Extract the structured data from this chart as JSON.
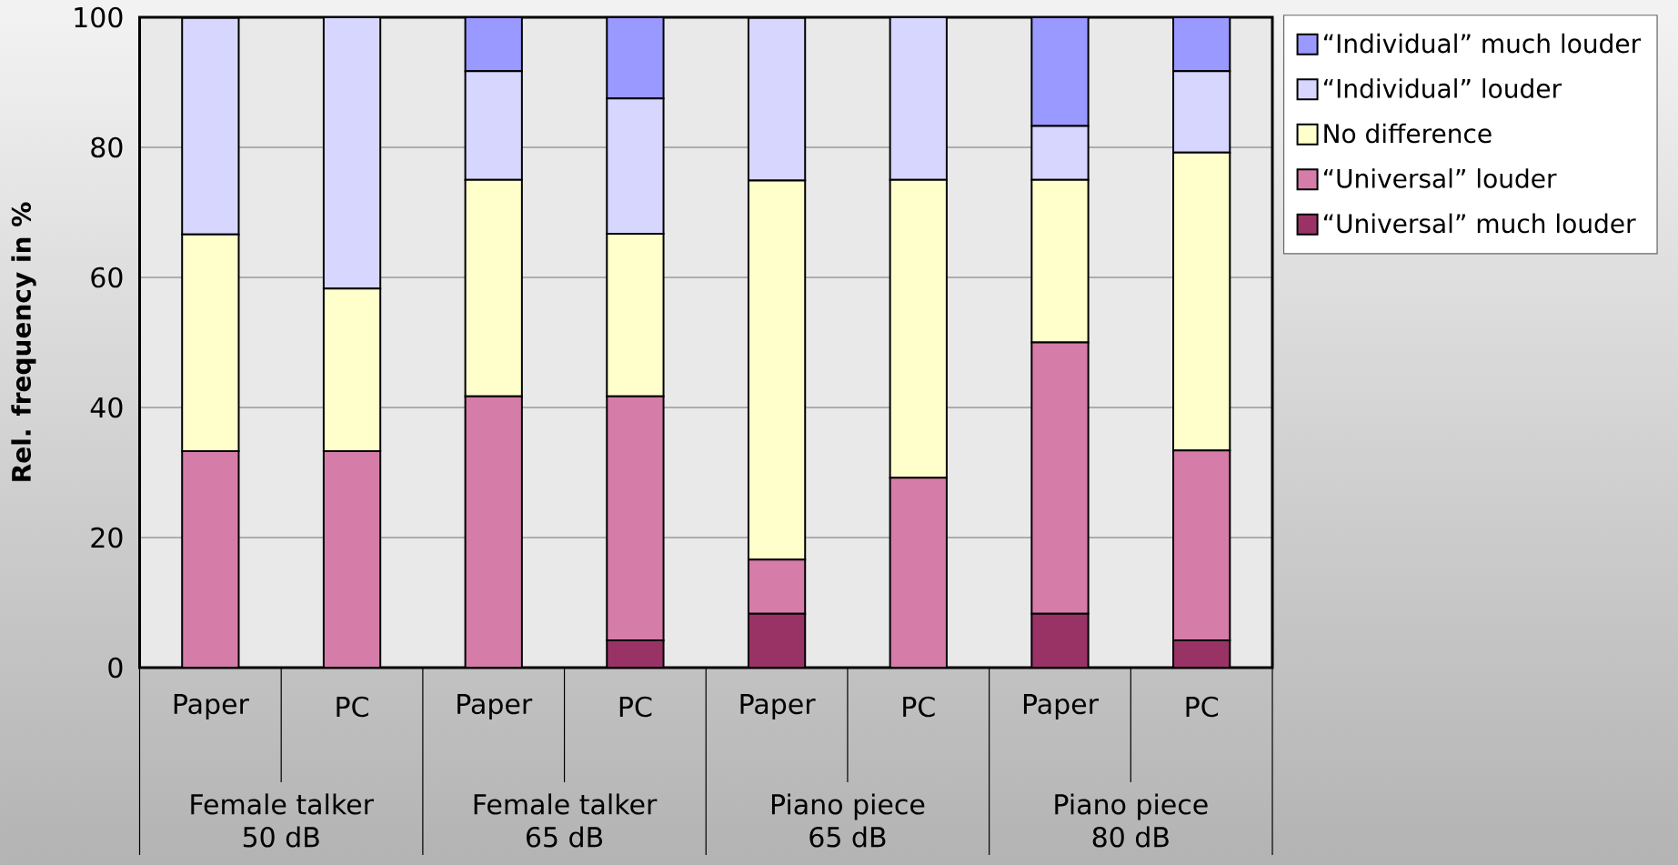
{
  "chart_data": {
    "type": "bar",
    "stacked": true,
    "ylabel": "Rel. frequency in %",
    "categories": [
      "Paper",
      "PC",
      "Paper",
      "PC",
      "Paper",
      "PC",
      "Paper",
      "PC"
    ],
    "annotations": [
      "Female talker 50 dB",
      "Female talker 65 dB",
      "Piano piece 65 dB",
      "Piano piece 80 dB"
    ],
    "series": [
      {
        "name": "“Universal” much louder",
        "color": "#993366",
        "values": [
          0,
          0,
          0,
          4.2,
          8.3,
          0,
          8.3,
          4.2
        ]
      },
      {
        "name": "“Universal” louder",
        "color": "#d67ca8",
        "values": [
          33.3,
          33.3,
          41.7,
          37.5,
          8.3,
          29.2,
          41.7,
          29.2
        ]
      },
      {
        "name": "No difference",
        "color": "#ffffcc",
        "values": [
          33.3,
          25,
          33.3,
          25,
          58.3,
          45.8,
          25,
          45.8
        ]
      },
      {
        "name": "“Individual” louder",
        "color": "#d6d6ff",
        "values": [
          33.3,
          41.7,
          16.7,
          20.8,
          25,
          25,
          8.3,
          12.5
        ]
      },
      {
        "name": "“Individual” much louder",
        "color": "#9999ff",
        "values": [
          0,
          0,
          8.3,
          12.5,
          0,
          0,
          16.7,
          8.3
        ]
      }
    ],
    "ylim": [
      0,
      100
    ],
    "yticks": [
      0,
      20,
      40,
      60,
      80,
      100
    ],
    "grid": "y",
    "legend": "top right"
  }
}
